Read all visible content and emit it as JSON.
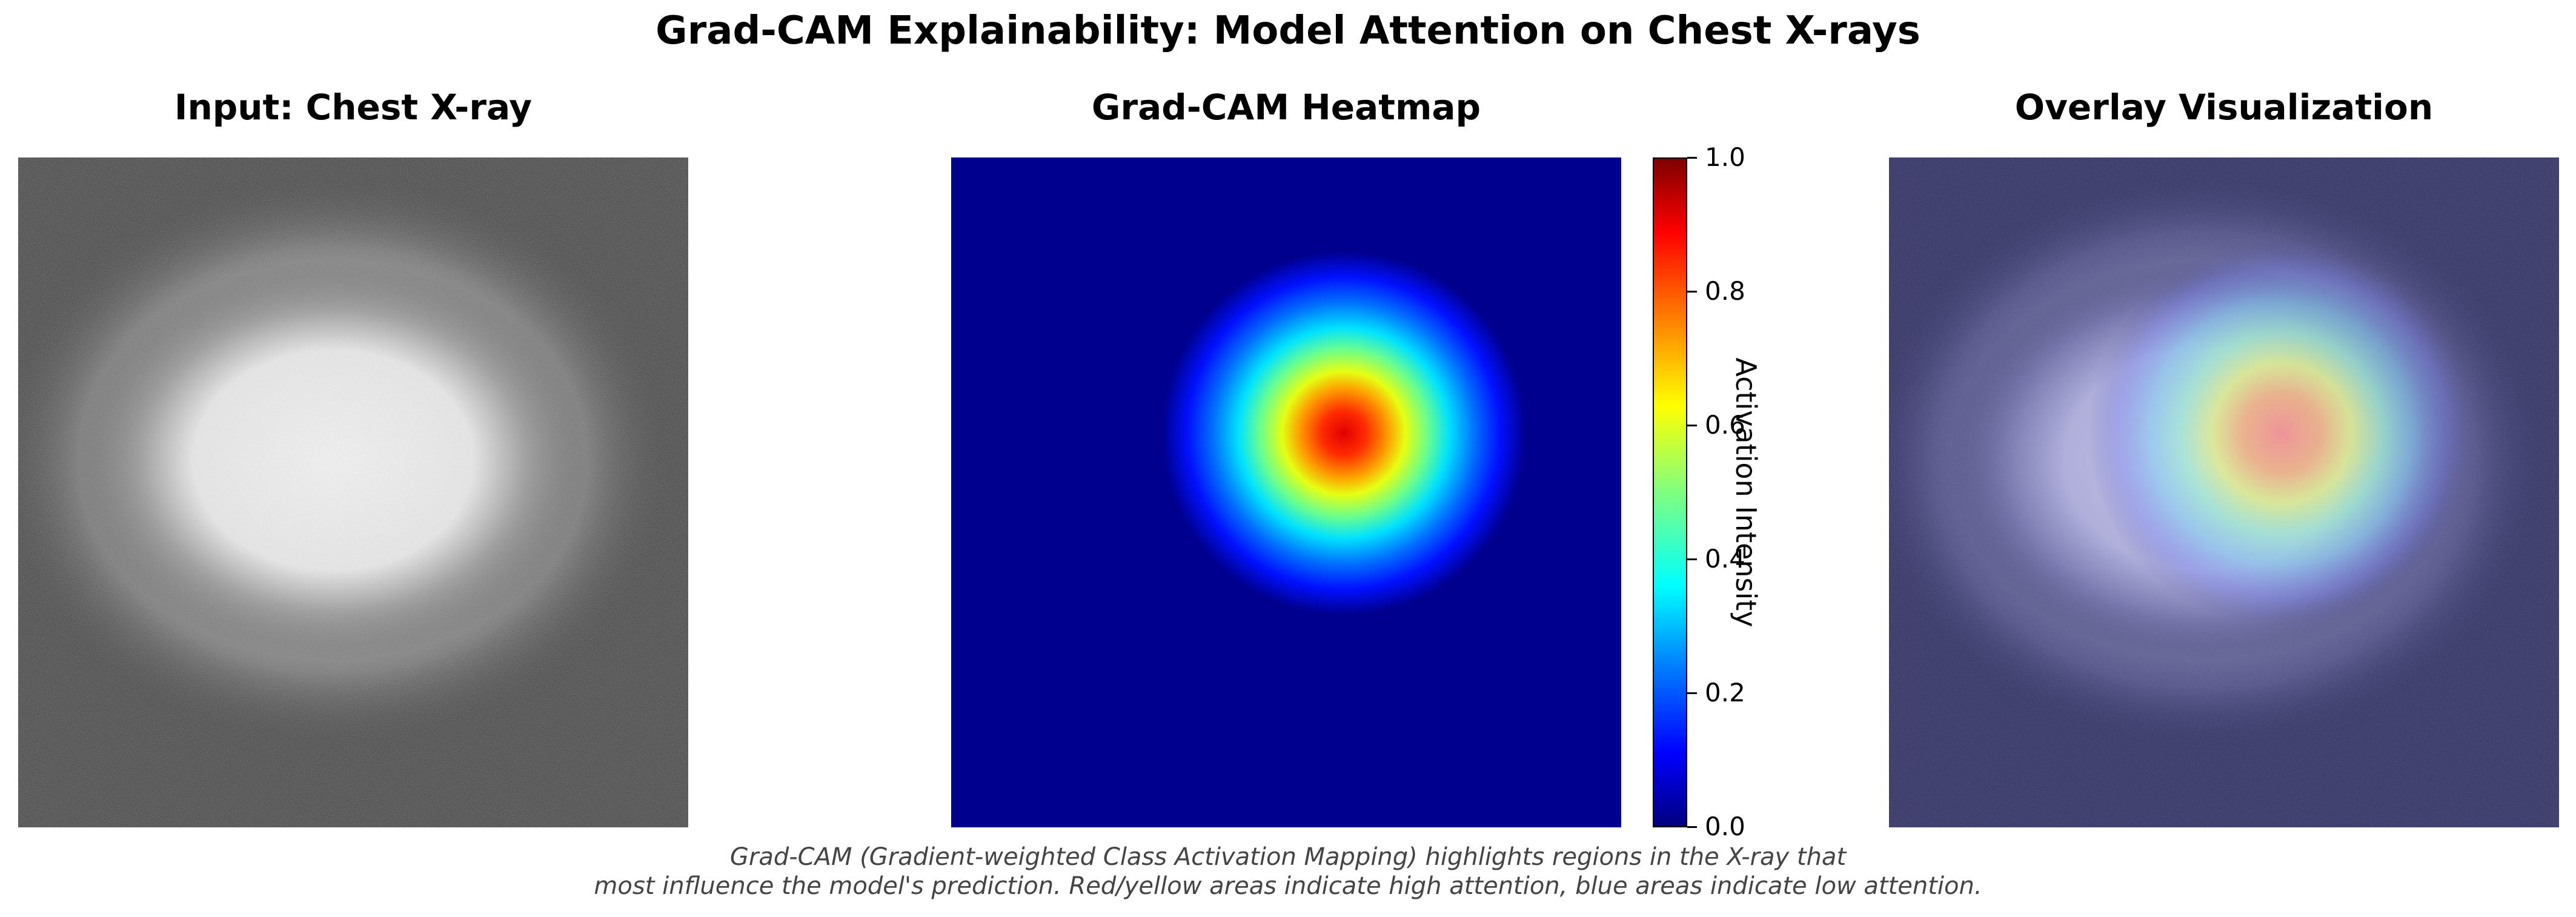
{
  "title": "Grad-CAM Explainability: Model Attention on Chest X-rays",
  "panels": {
    "input_title": "Input: Chest X-ray",
    "heatmap_title": "Grad-CAM Heatmap",
    "overlay_title": "Overlay Visualization"
  },
  "colorbar": {
    "label": "Activation Intensity",
    "colormap": "jet",
    "ticks": [
      "0.0",
      "0.2",
      "0.4",
      "0.6",
      "0.8",
      "1.0"
    ]
  },
  "caption": {
    "line1": "Grad-CAM (Gradient-weighted Class Activation Mapping) highlights regions in the X-ray that",
    "line2": "most influence the model's prediction. Red/yellow areas indicate high attention, blue areas indicate low attention."
  },
  "chart_data": [
    {
      "type": "heatmap",
      "title": "Input: Chest X-ray",
      "colormap": "gray",
      "axes": "off"
    },
    {
      "type": "heatmap",
      "title": "Grad-CAM Heatmap",
      "colormap": "jet",
      "vmin": 0.0,
      "vmax": 1.0,
      "colorbar_label": "Activation Intensity",
      "axes": "off"
    },
    {
      "type": "heatmap",
      "title": "Overlay Visualization",
      "colormap": "jet overlaid on gray",
      "axes": "off"
    }
  ]
}
